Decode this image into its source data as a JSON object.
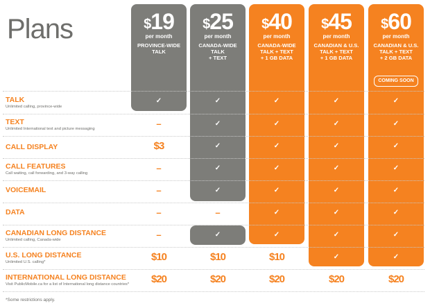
{
  "title": "Plans",
  "plans": [
    {
      "price": "19",
      "per": "per month",
      "name": "PROVINCE-WIDE\nTALK",
      "badge": ""
    },
    {
      "price": "25",
      "per": "per month",
      "name": "CANADA-WIDE TALK\n+ TEXT",
      "badge": ""
    },
    {
      "price": "40",
      "per": "per month",
      "name": "CANADA-WIDE\nTALK + TEXT\n+ 1 GB DATA",
      "badge": ""
    },
    {
      "price": "45",
      "per": "per month",
      "name": "CANADIAN & U.S.\nTALK + TEXT\n+ 1 GB DATA",
      "badge": ""
    },
    {
      "price": "60",
      "per": "per month",
      "name": "CANADIAN & U.S.\nTALK + TEXT\n+ 2 GB DATA",
      "badge": "COMING SOON"
    }
  ],
  "rows": [
    {
      "label": "TALK",
      "desc": "Unlimited calling, province-wide",
      "cells": [
        "✓",
        "✓",
        "✓",
        "✓",
        "✓"
      ]
    },
    {
      "label": "TEXT",
      "desc": "Unlimited International text and picture messaging",
      "cells": [
        "–",
        "✓",
        "✓",
        "✓",
        "✓"
      ]
    },
    {
      "label": "CALL DISPLAY",
      "desc": "",
      "cells": [
        "$3",
        "✓",
        "✓",
        "✓",
        "✓"
      ]
    },
    {
      "label": "CALL FEATURES",
      "desc": "Call waiting, call forwarding, and 3-way calling",
      "cells": [
        "–",
        "✓",
        "✓",
        "✓",
        "✓"
      ]
    },
    {
      "label": "VOICEMAIL",
      "desc": "",
      "cells": [
        "–",
        "✓",
        "✓",
        "✓",
        "✓"
      ]
    },
    {
      "label": "DATA",
      "desc": "",
      "cells": [
        "–",
        "–",
        "✓",
        "✓",
        "✓"
      ]
    },
    {
      "label": "CANADIAN LONG DISTANCE",
      "desc": "Unlimited calling, Canada-wide",
      "cells": [
        "–",
        "✓",
        "✓",
        "✓",
        "✓"
      ]
    },
    {
      "label": "U.S. LONG DISTANCE",
      "desc": "Unlimited U.S. calling*",
      "cells": [
        "$10",
        "$10",
        "$10",
        "✓",
        "✓"
      ]
    },
    {
      "label": "INTERNATIONAL LONG DISTANCE",
      "desc": "Visit PublicMobile.ca for a list of International long distance countries*",
      "cells": [
        "$20",
        "$20",
        "$20",
        "$20",
        "$20"
      ]
    }
  ],
  "footnote": "*Some restrictions apply.",
  "colors": {
    "orange": "#f58220",
    "gray": "#7d7d79",
    "text": "#6e6e6b"
  }
}
